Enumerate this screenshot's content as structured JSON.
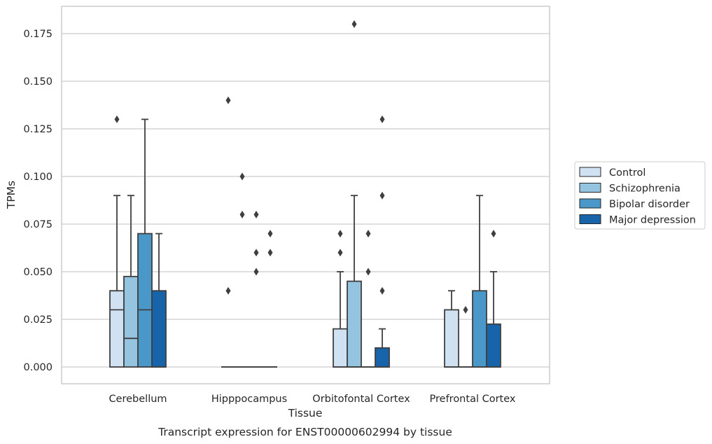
{
  "chart_data": {
    "type": "boxplot",
    "xlabel": "Tissue",
    "ylabel": "TPMs",
    "caption": "Transcript expression for ENST00000602994 by tissue",
    "ylim": [
      -0.009,
      0.189
    ],
    "yticks": [
      "0.000",
      "0.025",
      "0.050",
      "0.075",
      "0.100",
      "0.125",
      "0.150",
      "0.175"
    ],
    "ytick_values": [
      0,
      0.025,
      0.05,
      0.075,
      0.1,
      0.125,
      0.15,
      0.175
    ],
    "grid": "horizontal",
    "legend_position": "right",
    "categories": [
      "Cerebellum",
      "Hipppocampus",
      "Orbitofontal Cortex",
      "Prefrontal Cortex"
    ],
    "series": [
      {
        "name": "Control",
        "color": "#d0e1f2",
        "boxes": [
          {
            "q1": 0,
            "median": 0.03,
            "q3": 0.04,
            "whisker_low": 0,
            "whisker_high": 0.09,
            "outliers": [
              0.13
            ]
          },
          {
            "q1": 0,
            "median": 0,
            "q3": 0,
            "whisker_low": 0,
            "whisker_high": 0,
            "outliers": [
              0.14,
              0.04
            ]
          },
          {
            "q1": 0,
            "median": 0,
            "q3": 0.02,
            "whisker_low": 0,
            "whisker_high": 0.05,
            "outliers": [
              0.07,
              0.06
            ]
          },
          {
            "q1": 0,
            "median": 0,
            "q3": 0.03,
            "whisker_low": 0,
            "whisker_high": 0.04,
            "outliers": []
          }
        ]
      },
      {
        "name": "Schizophrenia",
        "color": "#94c4df",
        "boxes": [
          {
            "q1": 0,
            "median": 0.015,
            "q3": 0.0475,
            "whisker_low": 0,
            "whisker_high": 0.09,
            "outliers": []
          },
          {
            "q1": 0,
            "median": 0,
            "q3": 0,
            "whisker_low": 0,
            "whisker_high": 0,
            "outliers": [
              0.1,
              0.08
            ]
          },
          {
            "q1": 0,
            "median": 0,
            "q3": 0.045,
            "whisker_low": 0,
            "whisker_high": 0.09,
            "outliers": [
              0.18
            ]
          },
          {
            "q1": 0,
            "median": 0,
            "q3": 0,
            "whisker_low": 0,
            "whisker_high": 0,
            "outliers": [
              0.03
            ]
          }
        ]
      },
      {
        "name": "Bipolar disorder",
        "color": "#4a98c9",
        "boxes": [
          {
            "q1": 0,
            "median": 0.03,
            "q3": 0.07,
            "whisker_low": 0,
            "whisker_high": 0.13,
            "outliers": []
          },
          {
            "q1": 0,
            "median": 0,
            "q3": 0,
            "whisker_low": 0,
            "whisker_high": 0,
            "outliers": [
              0.08,
              0.06,
              0.05
            ]
          },
          {
            "q1": 0,
            "median": 0,
            "q3": 0,
            "whisker_low": 0,
            "whisker_high": 0,
            "outliers": [
              0.07,
              0.05
            ]
          },
          {
            "q1": 0,
            "median": 0,
            "q3": 0.04,
            "whisker_low": 0,
            "whisker_high": 0.09,
            "outliers": []
          }
        ]
      },
      {
        "name": "Major depression",
        "color": "#1764ab",
        "boxes": [
          {
            "q1": 0,
            "median": 0,
            "q3": 0.04,
            "whisker_low": 0,
            "whisker_high": 0.07,
            "outliers": []
          },
          {
            "q1": 0,
            "median": 0,
            "q3": 0,
            "whisker_low": 0,
            "whisker_high": 0,
            "outliers": [
              0.07,
              0.06
            ]
          },
          {
            "q1": 0,
            "median": 0,
            "q3": 0.01,
            "whisker_low": 0,
            "whisker_high": 0.02,
            "outliers": [
              0.13,
              0.09,
              0.04
            ]
          },
          {
            "q1": 0,
            "median": 0,
            "q3": 0.0225,
            "whisker_low": 0,
            "whisker_high": 0.05,
            "outliers": [
              0.07
            ]
          }
        ]
      }
    ]
  }
}
